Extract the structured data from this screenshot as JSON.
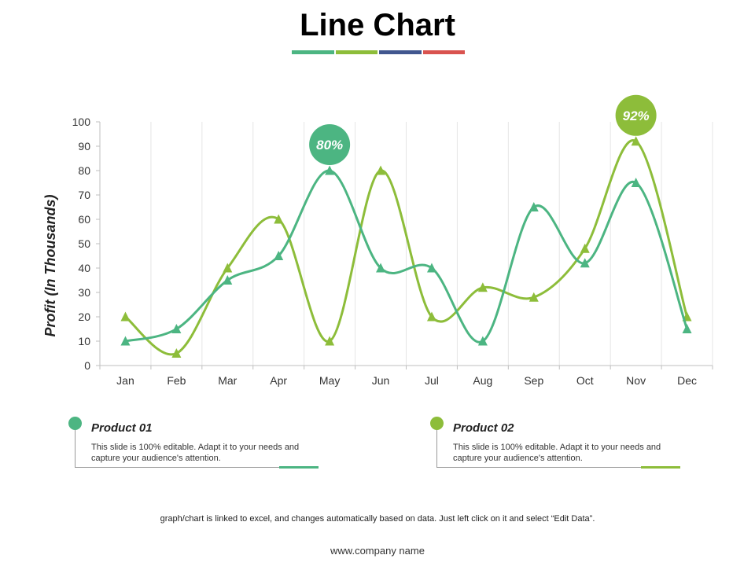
{
  "title": "Line Chart",
  "title_bar_colors": [
    "#4cb582",
    "#8dbd3a",
    "#41578f",
    "#d9534f"
  ],
  "chart_data": {
    "type": "line",
    "title": "",
    "xlabel": "",
    "ylabel": "Profit (In Thousands)",
    "categories": [
      "Jan",
      "Feb",
      "Mar",
      "Apr",
      "May",
      "Jun",
      "Jul",
      "Aug",
      "Sep",
      "Oct",
      "Nov",
      "Dec"
    ],
    "ylim": [
      0,
      100
    ],
    "yticks": [
      0,
      10,
      20,
      30,
      40,
      50,
      60,
      70,
      80,
      90,
      100
    ],
    "grid": "vertical",
    "series": [
      {
        "name": "Product 01",
        "color": "#4cb582",
        "marker": "triangle",
        "values": [
          10,
          15,
          35,
          45,
          80,
          40,
          40,
          10,
          65,
          42,
          75,
          15
        ]
      },
      {
        "name": "Product 02",
        "color": "#8dbd3a",
        "marker": "triangle",
        "values": [
          20,
          5,
          40,
          60,
          10,
          80,
          20,
          32,
          28,
          48,
          92,
          20
        ]
      }
    ],
    "annotations": [
      {
        "text": "80%",
        "series": 0,
        "category": "May",
        "color": "#4cb582"
      },
      {
        "text": "92%",
        "series": 1,
        "category": "Nov",
        "color": "#8dbd3a"
      }
    ]
  },
  "legend": [
    {
      "title": "Product 01",
      "description": "This slide is 100% editable. Adapt it to your needs and capture your audience's attention.",
      "color": "#4cb582"
    },
    {
      "title": "Product 02",
      "description": "This slide is 100% editable. Adapt it to your needs and capture your audience's attention.",
      "color": "#8dbd3a"
    }
  ],
  "footnote": "graph/chart  is linked to excel, and changes automatically based on data. Just left click on it and select “Edit Data”.",
  "website": "www.company name"
}
